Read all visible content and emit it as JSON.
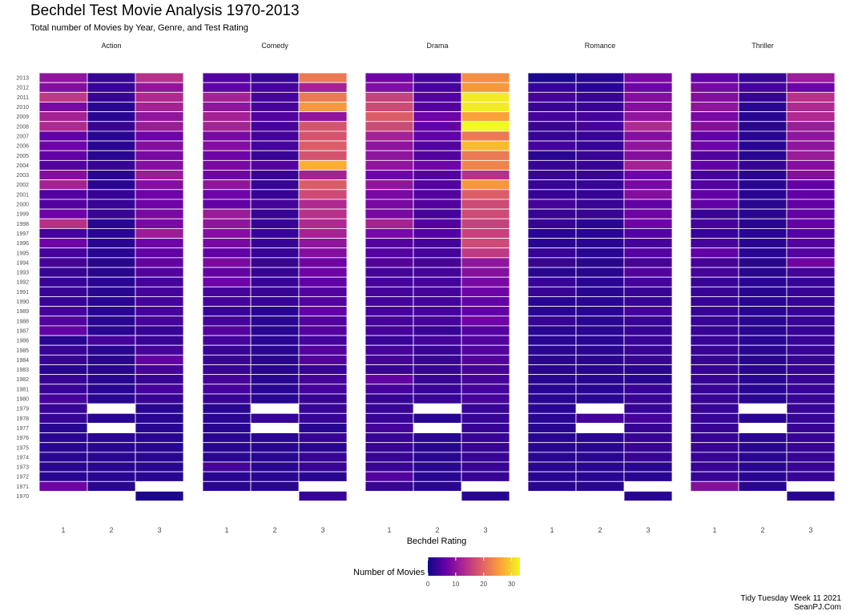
{
  "header": {
    "title": "Bechdel Test Movie Analysis 1970-2013",
    "subtitle": "Total number of Movies by Year, Genre, and Test Rating"
  },
  "caption": {
    "line1": "Tidy Tuesday Week 11 2021",
    "line2": "SeanPJ.Com"
  },
  "colors": {
    "scale": [
      "#0d0887",
      "#6a00a8",
      "#b12a90",
      "#e16462",
      "#fca636",
      "#f0f921"
    ],
    "cell_border": "#ffffff",
    "text": "#4d4d4d"
  },
  "chart_data": {
    "type": "heatmap",
    "x": "Bechdel Rating",
    "facets": [
      "Action",
      "Comedy",
      "Drama",
      "Romance",
      "Thriller"
    ],
    "ratings": [
      "1",
      "2",
      "3"
    ],
    "years": [
      2013,
      2012,
      2011,
      2010,
      2009,
      2008,
      2007,
      2006,
      2005,
      2004,
      2003,
      2002,
      2001,
      2000,
      1999,
      1998,
      1997,
      1996,
      1995,
      1994,
      1993,
      1992,
      1991,
      1990,
      1989,
      1988,
      1987,
      1986,
      1985,
      1984,
      1983,
      1982,
      1981,
      1980,
      1979,
      1978,
      1977,
      1976,
      1975,
      1974,
      1973,
      1972,
      1971,
      1970
    ],
    "xlabel": "Bechdel Rating",
    "legend": {
      "title": "Number of Movies",
      "ticks": [
        0,
        10,
        20,
        30
      ],
      "range": [
        0,
        33
      ],
      "position": "bottom"
    },
    "grid": false,
    "note": "values listed top (2013) to bottom (1970); null = no movies",
    "values": {
      "Action": {
        "1": [
          10,
          9,
          15,
          8,
          12,
          13,
          6,
          7,
          6,
          5,
          9,
          12,
          5,
          5,
          7,
          14,
          4,
          7,
          4,
          4,
          3,
          3,
          3,
          3,
          4,
          5,
          6,
          2,
          3,
          3,
          2,
          3,
          3,
          4,
          3,
          3,
          2,
          2,
          2,
          2,
          2,
          2,
          7,
          null
        ],
        "2": [
          3,
          3,
          3,
          2,
          2,
          3,
          2,
          2,
          2,
          3,
          2,
          2,
          3,
          3,
          3,
          2,
          2,
          2,
          2,
          2,
          2,
          2,
          2,
          2,
          2,
          2,
          2,
          4,
          2,
          2,
          2,
          2,
          2,
          2,
          null,
          2,
          null,
          2,
          2,
          2,
          2,
          2,
          2,
          null
        ],
        "3": [
          14,
          10,
          13,
          12,
          10,
          11,
          7,
          9,
          8,
          9,
          11,
          9,
          7,
          7,
          8,
          8,
          11,
          7,
          6,
          6,
          5,
          4,
          4,
          4,
          4,
          4,
          3,
          3,
          4,
          6,
          4,
          3,
          4,
          3,
          2,
          2,
          2,
          2,
          2,
          2,
          2,
          2,
          null,
          1
        ]
      },
      "Comedy": {
        "1": [
          5,
          6,
          12,
          10,
          12,
          12,
          8,
          9,
          7,
          8,
          7,
          10,
          7,
          6,
          11,
          10,
          9,
          8,
          6,
          8,
          6,
          7,
          4,
          4,
          3,
          4,
          5,
          4,
          3,
          3,
          3,
          4,
          4,
          3,
          2,
          2,
          2,
          2,
          2,
          2,
          4,
          2,
          2,
          null
        ],
        "2": [
          3,
          4,
          4,
          4,
          5,
          4,
          4,
          4,
          3,
          5,
          3,
          3,
          3,
          4,
          3,
          3,
          3,
          3,
          3,
          3,
          3,
          3,
          3,
          3,
          2,
          2,
          2,
          2,
          2,
          2,
          2,
          2,
          2,
          2,
          null,
          3,
          null,
          2,
          2,
          2,
          2,
          2,
          2,
          null
        ],
        "3": [
          22,
          12,
          22,
          25,
          10,
          18,
          18,
          19,
          18,
          27,
          12,
          19,
          17,
          13,
          14,
          13,
          12,
          10,
          9,
          7,
          7,
          6,
          5,
          5,
          6,
          5,
          5,
          4,
          5,
          5,
          3,
          4,
          4,
          3,
          3,
          3,
          2,
          3,
          2,
          3,
          3,
          2,
          null,
          3
        ]
      },
      "Drama": {
        "1": [
          7,
          9,
          16,
          17,
          19,
          17,
          12,
          10,
          10,
          10,
          7,
          10,
          8,
          8,
          8,
          12,
          8,
          5,
          5,
          5,
          4,
          4,
          4,
          4,
          4,
          4,
          4,
          3,
          4,
          4,
          3,
          6,
          4,
          3,
          3,
          3,
          4,
          3,
          3,
          3,
          3,
          5,
          3,
          null
        ],
        "2": [
          4,
          4,
          5,
          5,
          7,
          6,
          6,
          5,
          5,
          7,
          5,
          5,
          5,
          5,
          4,
          5,
          5,
          4,
          4,
          4,
          4,
          4,
          4,
          4,
          4,
          4,
          3,
          4,
          3,
          3,
          3,
          3,
          3,
          3,
          null,
          2,
          null,
          2,
          2,
          2,
          2,
          2,
          2,
          null
        ],
        "3": [
          24,
          25,
          32,
          32,
          26,
          33,
          22,
          28,
          22,
          23,
          14,
          25,
          19,
          17,
          17,
          16,
          16,
          17,
          15,
          10,
          9,
          8,
          7,
          6,
          6,
          7,
          5,
          5,
          5,
          5,
          4,
          4,
          4,
          4,
          3,
          3,
          3,
          3,
          3,
          3,
          3,
          3,
          null,
          2
        ]
      },
      "Romance": {
        "1": [
          1,
          3,
          4,
          3,
          4,
          3,
          3,
          4,
          2,
          3,
          3,
          3,
          3,
          4,
          3,
          3,
          2,
          2,
          3,
          3,
          2,
          3,
          3,
          2,
          2,
          3,
          2,
          2,
          2,
          2,
          2,
          2,
          2,
          2,
          2,
          2,
          2,
          2,
          2,
          2,
          2,
          2,
          2,
          null
        ],
        "2": [
          2,
          2,
          3,
          3,
          4,
          4,
          3,
          3,
          3,
          3,
          3,
          3,
          3,
          3,
          3,
          2,
          2,
          2,
          2,
          2,
          2,
          2,
          2,
          2,
          2,
          2,
          2,
          2,
          2,
          2,
          2,
          2,
          2,
          2,
          null,
          4,
          null,
          2,
          2,
          2,
          2,
          2,
          2,
          null
        ],
        "3": [
          8,
          7,
          9,
          9,
          10,
          13,
          9,
          10,
          9,
          12,
          7,
          8,
          9,
          6,
          7,
          7,
          5,
          4,
          5,
          4,
          5,
          4,
          3,
          3,
          4,
          3,
          3,
          3,
          3,
          3,
          2,
          2,
          3,
          3,
          3,
          4,
          3,
          3,
          3,
          3,
          2,
          2,
          null,
          2
        ]
      },
      "Thriller": {
        "1": [
          6,
          8,
          9,
          10,
          8,
          9,
          6,
          7,
          5,
          6,
          4,
          5,
          6,
          6,
          3,
          4,
          3,
          4,
          6,
          4,
          4,
          3,
          3,
          3,
          3,
          3,
          3,
          3,
          3,
          3,
          3,
          3,
          3,
          3,
          3,
          3,
          3,
          3,
          3,
          3,
          3,
          3,
          9,
          null
        ],
        "2": [
          3,
          4,
          3,
          2,
          2,
          2,
          2,
          2,
          2,
          3,
          2,
          2,
          2,
          2,
          2,
          2,
          2,
          2,
          2,
          2,
          2,
          2,
          2,
          2,
          2,
          2,
          2,
          2,
          2,
          2,
          2,
          2,
          2,
          2,
          null,
          2,
          null,
          2,
          2,
          2,
          2,
          2,
          2,
          null
        ],
        "3": [
          11,
          7,
          14,
          13,
          13,
          11,
          10,
          10,
          11,
          9,
          9,
          6,
          6,
          6,
          6,
          6,
          5,
          5,
          5,
          7,
          4,
          3,
          3,
          3,
          3,
          3,
          3,
          3,
          3,
          3,
          3,
          3,
          3,
          3,
          3,
          3,
          3,
          3,
          3,
          3,
          3,
          3,
          null,
          2
        ]
      }
    }
  }
}
